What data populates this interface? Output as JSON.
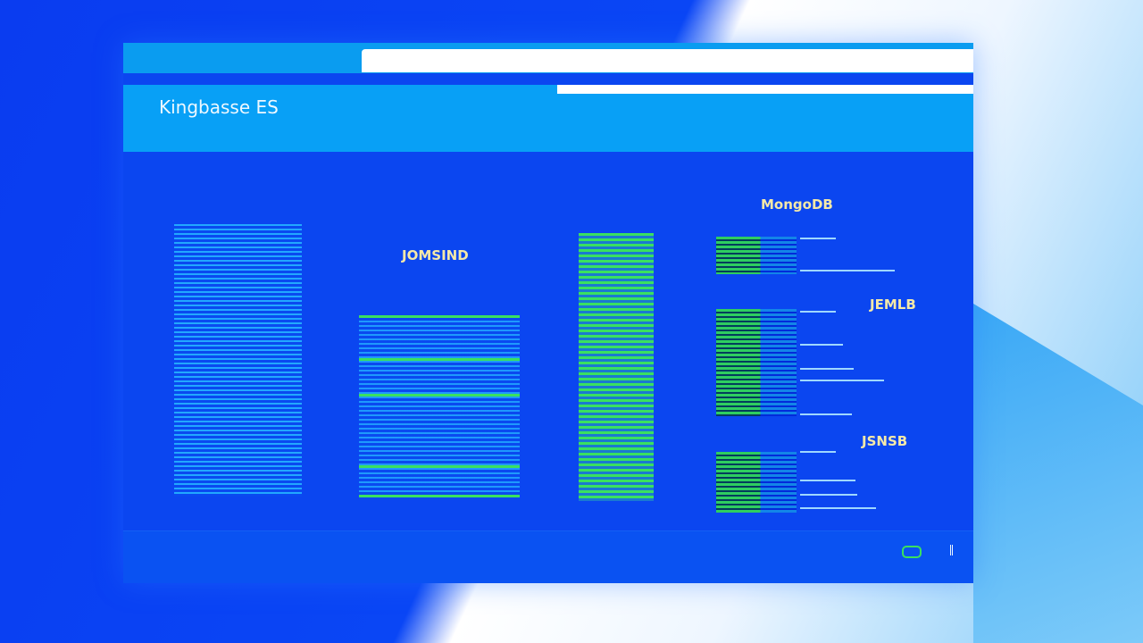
{
  "header": {
    "title": "Kingbasse ES"
  },
  "panels": [
    {
      "title": "JOMSIND"
    },
    {
      "title": "MongoDB"
    },
    {
      "title": "JEMLB"
    },
    {
      "title": "JSNSB"
    }
  ]
}
